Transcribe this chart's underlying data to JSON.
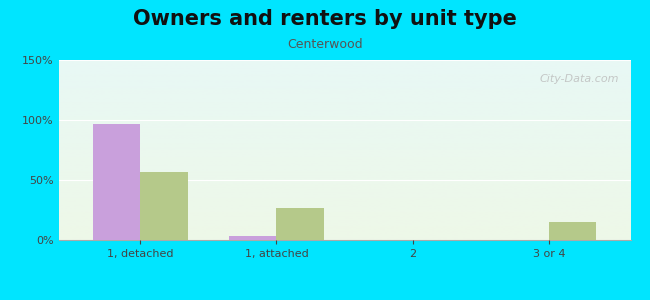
{
  "title": "Owners and renters by unit type",
  "subtitle": "Centerwood",
  "categories": [
    "1, detached",
    "1, attached",
    "2",
    "3 or 4"
  ],
  "owner_values": [
    97,
    3,
    0,
    0
  ],
  "renter_values": [
    57,
    27,
    0,
    15
  ],
  "owner_color": "#c9a0dc",
  "renter_color": "#b5c98a",
  "ylim": [
    0,
    150
  ],
  "yticks": [
    0,
    50,
    100,
    150
  ],
  "ytick_labels": [
    "0%",
    "50%",
    "100%",
    "150%"
  ],
  "bar_width": 0.35,
  "bg_top": "#e8f8f5",
  "bg_bottom": "#eef8e8",
  "outer_bg": "#00e5ff",
  "title_fontsize": 15,
  "subtitle_fontsize": 9,
  "tick_fontsize": 8,
  "legend_fontsize": 9,
  "watermark": "City-Data.com"
}
